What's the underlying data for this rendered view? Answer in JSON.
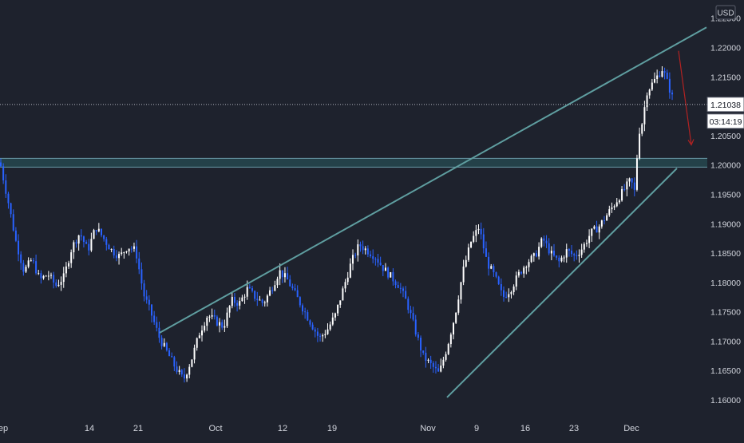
{
  "chart_data": {
    "type": "candlestick",
    "currency": "USD",
    "x_ticks": [
      "ep",
      "14",
      "21",
      "Oct",
      "12",
      "19",
      "Nov",
      "9",
      "16",
      "23",
      "Dec"
    ],
    "y_ticks": [
      "1.16000",
      "1.16500",
      "1.17000",
      "1.17500",
      "1.18000",
      "1.18500",
      "1.19000",
      "1.19500",
      "1.20000",
      "1.20500",
      "1.21000",
      "1.21500",
      "1.22000",
      "1.22500"
    ],
    "ylim": [
      1.1583,
      1.2268
    ],
    "last_price": "1.21038",
    "countdown": "03:14:19",
    "grid": false,
    "price_path": [
      [
        0,
        1.2005
      ],
      [
        10,
        1.194
      ],
      [
        20,
        1.187
      ],
      [
        30,
        1.182
      ],
      [
        40,
        1.184
      ],
      [
        50,
        1.1805
      ],
      [
        60,
        1.1815
      ],
      [
        70,
        1.1795
      ],
      [
        80,
        1.181
      ],
      [
        90,
        1.186
      ],
      [
        100,
        1.1885
      ],
      [
        110,
        1.1855
      ],
      [
        120,
        1.1895
      ],
      [
        130,
        1.1875
      ],
      [
        140,
        1.1855
      ],
      [
        150,
        1.1845
      ],
      [
        160,
        1.1862
      ],
      [
        170,
        1.1855
      ],
      [
        180,
        1.178
      ],
      [
        190,
        1.1745
      ],
      [
        200,
        1.1705
      ],
      [
        210,
        1.168
      ],
      [
        220,
        1.1655
      ],
      [
        230,
        1.1635
      ],
      [
        240,
        1.167
      ],
      [
        250,
        1.1715
      ],
      [
        260,
        1.1745
      ],
      [
        270,
        1.1735
      ],
      [
        280,
        1.1725
      ],
      [
        290,
        1.177
      ],
      [
        300,
        1.1765
      ],
      [
        310,
        1.179
      ],
      [
        320,
        1.1775
      ],
      [
        330,
        1.1765
      ],
      [
        340,
        1.179
      ],
      [
        350,
        1.182
      ],
      [
        360,
        1.1805
      ],
      [
        370,
        1.178
      ],
      [
        380,
        1.1755
      ],
      [
        390,
        1.173
      ],
      [
        400,
        1.1705
      ],
      [
        410,
        1.172
      ],
      [
        420,
        1.1745
      ],
      [
        430,
        1.179
      ],
      [
        440,
        1.1835
      ],
      [
        450,
        1.1865
      ],
      [
        460,
        1.1855
      ],
      [
        470,
        1.1845
      ],
      [
        480,
        1.1825
      ],
      [
        490,
        1.181
      ],
      [
        500,
        1.1795
      ],
      [
        510,
        1.1765
      ],
      [
        520,
        1.172
      ],
      [
        530,
        1.1675
      ],
      [
        540,
        1.166
      ],
      [
        550,
        1.1645
      ],
      [
        560,
        1.169
      ],
      [
        570,
        1.1745
      ],
      [
        580,
        1.182
      ],
      [
        590,
        1.187
      ],
      [
        600,
        1.1895
      ],
      [
        610,
        1.1835
      ],
      [
        620,
        1.181
      ],
      [
        630,
        1.1775
      ],
      [
        640,
        1.179
      ],
      [
        650,
        1.1815
      ],
      [
        660,
        1.1835
      ],
      [
        670,
        1.1845
      ],
      [
        680,
        1.1875
      ],
      [
        690,
        1.185
      ],
      [
        700,
        1.1835
      ],
      [
        710,
        1.1855
      ],
      [
        720,
        1.1845
      ],
      [
        730,
        1.186
      ],
      [
        740,
        1.1885
      ],
      [
        750,
        1.1895
      ],
      [
        760,
        1.1915
      ],
      [
        770,
        1.1935
      ],
      [
        780,
        1.1955
      ],
      [
        790,
        1.1975
      ],
      [
        795,
        1.1955
      ],
      [
        800,
        1.2055
      ],
      [
        805,
        1.2075
      ],
      [
        810,
        1.2125
      ],
      [
        815,
        1.2135
      ],
      [
        820,
        1.2145
      ],
      [
        825,
        1.2155
      ],
      [
        830,
        1.2165
      ],
      [
        835,
        1.2145
      ],
      [
        840,
        1.2125
      ],
      [
        845,
        1.2104
      ]
    ],
    "drawings": {
      "resistance_line": {
        "from": [
          200,
          1.1715
        ],
        "to": [
          885,
          1.2235
        ]
      },
      "support_line": {
        "from": [
          560,
          1.1605
        ],
        "to": [
          848,
          1.1995
        ]
      },
      "horizontal_zone": [
        1.1997,
        1.2012
      ],
      "projection_arrow": {
        "from": [
          850,
          1.2195
        ],
        "to": [
          866,
          1.2035
        ]
      }
    },
    "colors": {
      "background": "#1e222d",
      "up": "#ffffff",
      "down": "#2962ff",
      "trendline": "#5f9ea0",
      "zone_fill": "#26474f",
      "zone_edge": "#6a9aa7",
      "arrow": "#b22222",
      "axis_text": "#d1d4dc",
      "price_line": "#b2b5be"
    }
  }
}
